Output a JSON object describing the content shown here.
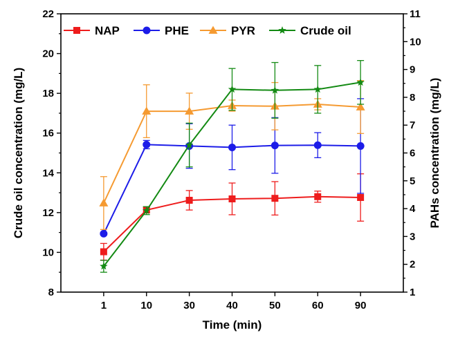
{
  "chart_data": {
    "type": "line",
    "xlabel": "Time (min)",
    "ylabel_left": "Crude oil concentration (mg/L)",
    "ylabel_right": "PAHs concentration (mg/L)",
    "categories": [
      "1",
      "10",
      "30",
      "40",
      "50",
      "60",
      "90"
    ],
    "ylim_left": [
      8,
      22
    ],
    "ylim_right": [
      1,
      11
    ],
    "yticks_left": [
      8,
      10,
      12,
      14,
      16,
      18,
      20,
      22
    ],
    "yticks_right": [
      1,
      2,
      3,
      4,
      5,
      6,
      7,
      8,
      9,
      10,
      11
    ],
    "legend_position": "top",
    "series": [
      {
        "name": "NAP",
        "axis": "right",
        "color": "#ee1c1c",
        "marker": "square",
        "values": [
          2.45,
          3.95,
          4.3,
          4.35,
          4.37,
          4.43,
          4.4
        ],
        "errors": [
          0.3,
          0.1,
          0.35,
          0.57,
          0.6,
          0.2,
          0.85
        ]
      },
      {
        "name": "PHE",
        "axis": "right",
        "color": "#1c1ce8",
        "marker": "circle",
        "values": [
          3.1,
          6.3,
          6.25,
          6.2,
          6.27,
          6.28,
          6.25
        ],
        "errors": [
          0.05,
          0.15,
          0.8,
          0.8,
          1.0,
          0.45,
          1.7
        ]
      },
      {
        "name": "PYR",
        "axis": "right",
        "color": "#f59a31",
        "marker": "triangle",
        "values": [
          4.2,
          7.5,
          7.5,
          7.7,
          7.68,
          7.75,
          7.65
        ],
        "errors": [
          0.95,
          0.95,
          0.65,
          0.2,
          0.85,
          0.2,
          0.95
        ]
      },
      {
        "name": "Crude oil",
        "axis": "left",
        "color": "#138a13",
        "marker": "star",
        "values": [
          9.3,
          12.1,
          15.4,
          18.2,
          18.15,
          18.2,
          18.55
        ],
        "errors": [
          0.3,
          0.2,
          1.1,
          1.05,
          1.4,
          1.2,
          1.1
        ]
      }
    ]
  }
}
